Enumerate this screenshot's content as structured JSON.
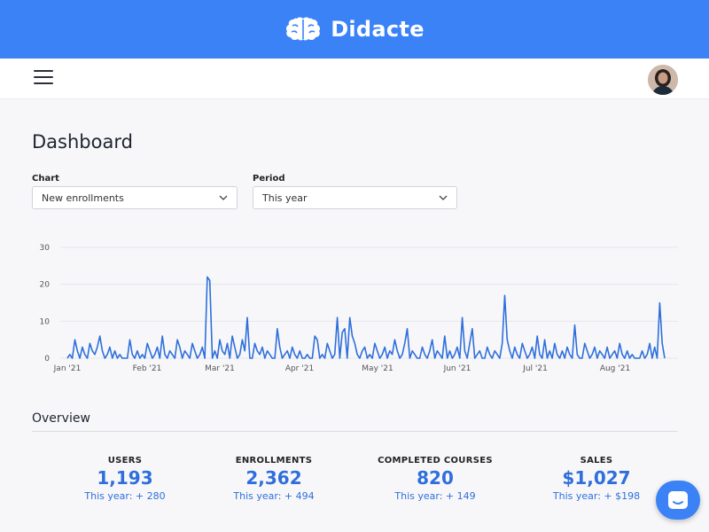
{
  "brand": {
    "name": "Didacte",
    "logo_icon": "brain-icon",
    "color": "#3b82f6"
  },
  "nav": {
    "menu_icon": "hamburger-icon",
    "avatar": "user-avatar"
  },
  "dashboard": {
    "title": "Dashboard",
    "chart_select": {
      "label": "Chart",
      "value": "New enrollments"
    },
    "period_select": {
      "label": "Period",
      "value": "This year"
    }
  },
  "chart_data": {
    "type": "line",
    "title": "",
    "xlabel": "",
    "ylabel": "",
    "ylim": [
      0,
      30
    ],
    "yticks": [
      0,
      10,
      20,
      30
    ],
    "xtick_labels": [
      "Jan '21",
      "Feb '21",
      "Mar '21",
      "Apr '21",
      "May '21",
      "Jun '21",
      "Jul '21",
      "Aug '21"
    ],
    "grid": true,
    "color": "#2f6fdb",
    "series": [
      {
        "values": [
          0,
          1,
          0,
          5,
          2,
          0,
          3,
          1,
          0,
          4,
          2,
          1,
          3,
          6,
          2,
          0,
          1,
          3,
          0,
          2,
          0,
          1,
          0,
          0,
          0,
          5,
          1,
          0,
          2,
          0,
          1,
          0,
          4,
          2,
          0,
          1,
          3,
          0,
          6,
          1,
          0,
          2,
          1,
          0,
          5,
          3,
          0,
          2,
          1,
          0,
          4,
          2,
          0,
          1,
          3,
          0,
          22,
          21,
          0,
          2,
          0,
          5,
          2,
          1,
          4,
          0,
          6,
          3,
          0,
          1,
          5,
          2,
          11,
          0,
          0,
          4,
          2,
          1,
          3,
          0,
          2,
          1,
          0,
          0,
          8,
          3,
          0,
          1,
          2,
          0,
          3,
          1,
          0,
          2,
          0,
          0,
          1,
          0,
          0,
          6,
          5,
          0,
          1,
          0,
          4,
          2,
          0,
          1,
          11,
          0,
          7,
          8,
          0,
          11,
          6,
          4,
          1,
          0,
          2,
          3,
          0,
          1,
          0,
          4,
          2,
          0,
          1,
          3,
          0,
          2,
          1,
          5,
          2,
          0,
          1,
          4,
          8,
          0,
          2,
          1,
          0,
          0,
          3,
          1,
          0,
          2,
          5,
          0,
          2,
          1,
          0,
          6,
          0,
          2,
          0,
          1,
          3,
          0,
          11,
          2,
          0,
          4,
          8,
          0,
          1,
          2,
          0,
          0,
          3,
          1,
          0,
          2,
          1,
          0,
          4,
          17,
          5,
          2,
          0,
          3,
          1,
          0,
          4,
          2,
          0,
          1,
          3,
          0,
          6,
          1,
          0,
          5,
          0,
          2,
          0,
          4,
          1,
          0,
          2,
          0,
          3,
          1,
          0,
          9,
          1,
          0,
          0,
          4,
          2,
          0,
          1,
          3,
          0,
          2,
          1,
          0,
          3,
          0,
          1,
          2,
          0,
          4,
          1,
          0,
          2,
          0,
          1,
          0,
          0,
          0,
          2,
          0,
          1,
          4,
          0,
          3,
          0,
          15,
          4,
          0
        ]
      }
    ]
  },
  "overview": {
    "title": "Overview",
    "stats": [
      {
        "label": "USERS",
        "value": "1,193",
        "delta": "This year: + 280"
      },
      {
        "label": "ENROLLMENTS",
        "value": "2,362",
        "delta": "This year: + 494"
      },
      {
        "label": "COMPLETED COURSES",
        "value": "820",
        "delta": "This year: + 149"
      },
      {
        "label": "SALES",
        "value": "$1,027",
        "delta": "This year: + $198"
      }
    ]
  },
  "chat": {
    "icon": "chat-icon"
  }
}
